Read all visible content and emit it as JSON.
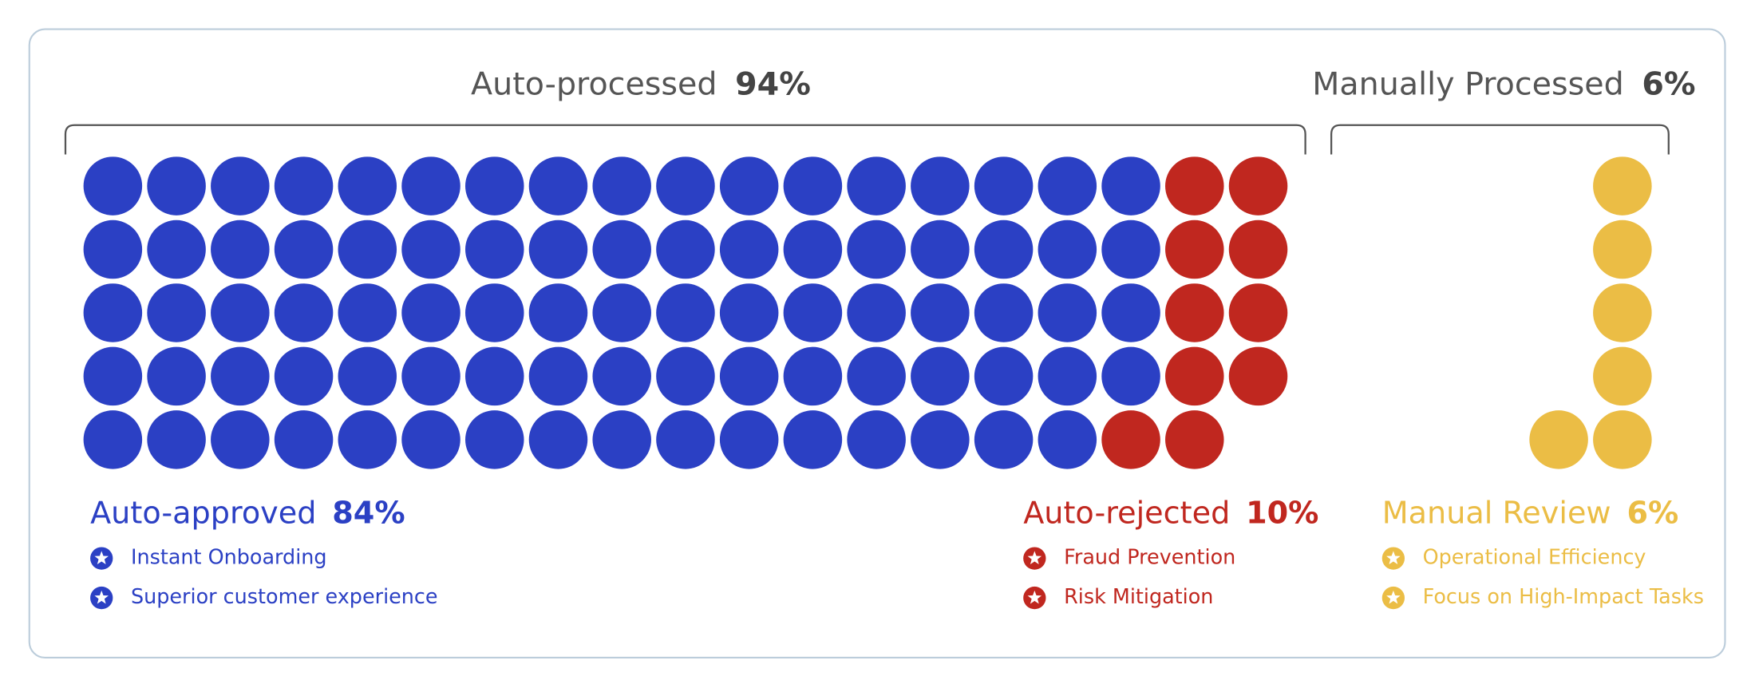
{
  "chart_data": {
    "type": "waffle",
    "groups": [
      {
        "label": "Auto-processed",
        "value": 94,
        "value_label": "94%",
        "segments": [
          {
            "name": "Auto-approved",
            "value": 84,
            "value_label": "84%",
            "color": "#2b40c4",
            "benefits": [
              "Instant Onboarding",
              "Superior customer experience"
            ]
          },
          {
            "name": "Auto-rejected",
            "value": 10,
            "value_label": "10%",
            "color": "#c0271f",
            "benefits": [
              "Fraud Prevention",
              "Risk Mitigation"
            ]
          }
        ]
      },
      {
        "label": "Manually Processed",
        "value": 6,
        "value_label": "6%",
        "segments": [
          {
            "name": "Manual Review",
            "value": 6,
            "value_label": "6%",
            "color": "#ebbd45",
            "benefits": [
              "Operational Efficiency",
              "Focus on High-Impact Tasks"
            ]
          }
        ]
      }
    ]
  }
}
